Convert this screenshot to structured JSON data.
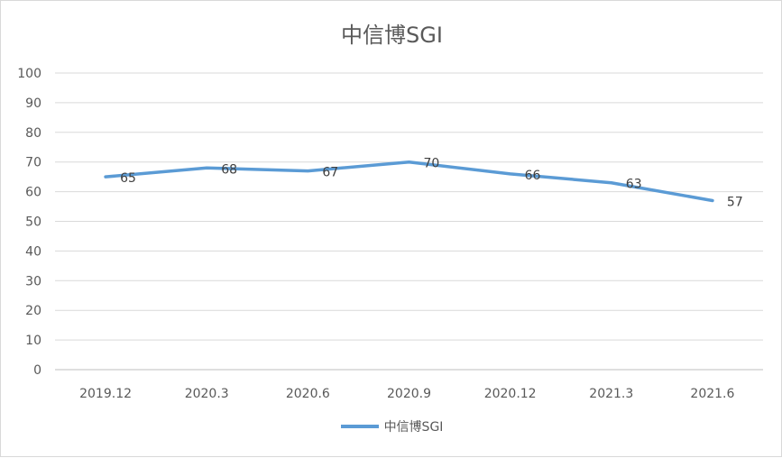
{
  "chart_data": {
    "type": "line",
    "title": "中信博SGI",
    "categories": [
      "2019.12",
      "2020.3",
      "2020.6",
      "2020.9",
      "2020.12",
      "2021.3",
      "2021.6"
    ],
    "series": [
      {
        "name": "中信博SGI",
        "values": [
          65,
          68,
          67,
          70,
          66,
          63,
          57
        ],
        "color": "#5b9bd5"
      }
    ],
    "ylim": [
      0,
      100
    ],
    "yticks": [
      0,
      10,
      20,
      30,
      40,
      50,
      60,
      70,
      80,
      90,
      100
    ],
    "grid": true,
    "legend": "bottom",
    "data_labels": true
  }
}
